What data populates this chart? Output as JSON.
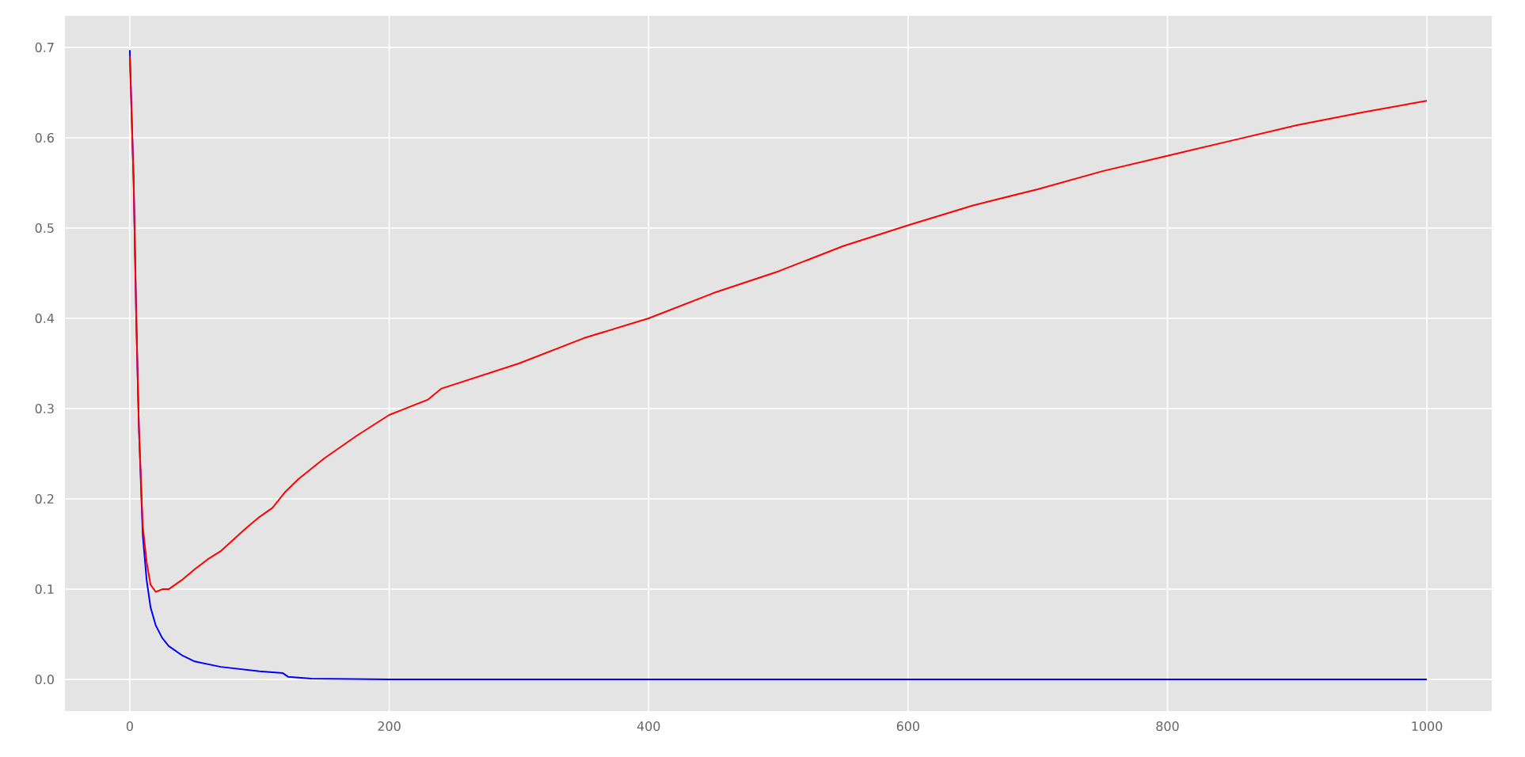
{
  "chart_data": {
    "type": "line",
    "grid": true,
    "xlim": [
      -50,
      1050
    ],
    "ylim": [
      -0.035,
      0.735
    ],
    "xticks": [
      0,
      200,
      400,
      600,
      800,
      1000
    ],
    "yticks": [
      {
        "value": 0,
        "label": "0.0"
      },
      0.1,
      0.2,
      0.3,
      0.4,
      0.5,
      0.6,
      0.7
    ],
    "series": [
      {
        "color": "#0000ff",
        "x": [
          0,
          3,
          5,
          7,
          10,
          13,
          16,
          20,
          25,
          30,
          40,
          50,
          70,
          100,
          118,
          122,
          140,
          200,
          1000
        ],
        "values": [
          0.697,
          0.55,
          0.4,
          0.28,
          0.16,
          0.11,
          0.08,
          0.06,
          0.046,
          0.037,
          0.027,
          0.02,
          0.014,
          0.009,
          0.007,
          0.003,
          0.001,
          0.0,
          0.0
        ]
      },
      {
        "color": "#ff0000",
        "x": [
          0,
          3,
          5,
          7,
          10,
          13,
          16,
          20,
          25,
          30,
          40,
          50,
          60,
          70,
          80,
          90,
          100,
          110,
          120,
          130,
          150,
          175,
          200,
          230,
          240,
          300,
          350,
          400,
          450,
          500,
          550,
          600,
          650,
          700,
          750,
          800,
          850,
          900,
          950,
          1000
        ],
        "values": [
          0.69,
          0.55,
          0.4,
          0.28,
          0.17,
          0.13,
          0.105,
          0.097,
          0.1,
          0.1,
          0.11,
          0.122,
          0.133,
          0.142,
          0.155,
          0.168,
          0.18,
          0.19,
          0.208,
          0.222,
          0.245,
          0.27,
          0.293,
          0.31,
          0.322,
          0.35,
          0.378,
          0.4,
          0.428,
          0.452,
          0.48,
          0.503,
          0.525,
          0.543,
          0.563,
          0.58,
          0.597,
          0.614,
          0.628,
          0.641
        ]
      }
    ]
  }
}
